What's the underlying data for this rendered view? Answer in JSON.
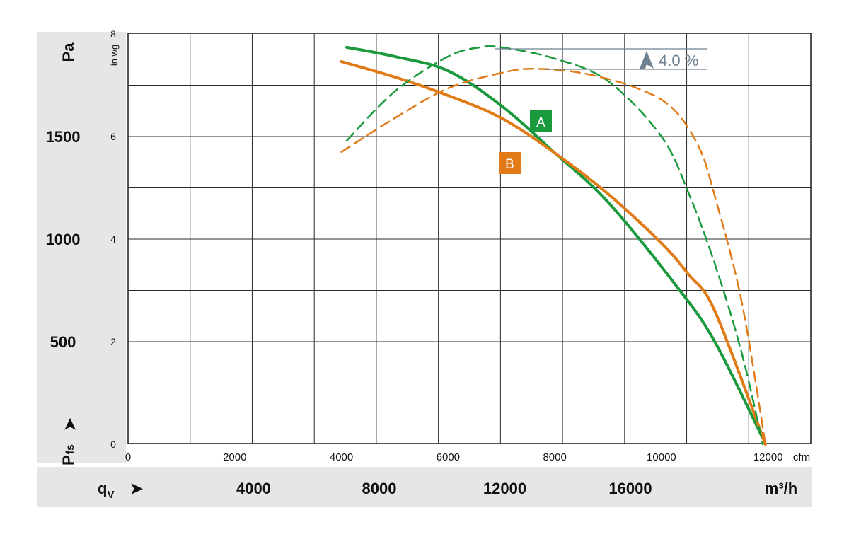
{
  "chart_data": {
    "type": "line",
    "left_axis": {
      "unit": "Pa",
      "ticks": [
        500,
        1000,
        1500
      ],
      "ylim": [
        0,
        2000
      ],
      "arrow_label": "➤",
      "label_main": "P",
      "label_sub": "fs"
    },
    "right_axis": {
      "unit": "in wg",
      "ticks": [
        0,
        2,
        4,
        6,
        8
      ],
      "ylim": [
        0,
        8
      ]
    },
    "x_axis_top": {
      "unit": "cfm",
      "ticks": [
        0,
        2000,
        4000,
        6000,
        8000,
        10000,
        12000
      ],
      "xlim": [
        0,
        12800
      ]
    },
    "x_axis_bottom": {
      "unit": "m³/h",
      "ticks": [
        4000,
        8000,
        12000,
        16000
      ],
      "label_main": "q",
      "label_sub": "V",
      "arrow_label": "➤"
    },
    "grid": true,
    "series": [
      {
        "name": "A",
        "style": "solid",
        "color": "#1a9a3c",
        "x": [
          4100,
          5000,
          6000,
          7000,
          8000,
          9000,
          10300,
          11000,
          11900
        ],
        "y": [
          1935,
          1890,
          1820,
          1650,
          1420,
          1180,
          765,
          500,
          30
        ]
      },
      {
        "name": "B",
        "style": "solid",
        "color": "#e07b18",
        "x": [
          4000,
          5000,
          6000,
          7000,
          8000,
          9000,
          10000,
          10500,
          11000,
          11950
        ],
        "y": [
          1865,
          1790,
          1700,
          1590,
          1420,
          1220,
          980,
          830,
          650,
          0
        ]
      },
      {
        "name": "A",
        "style": "dashed",
        "color": "#1a9a3c",
        "x": [
          4100,
          5000,
          6000,
          6600,
          7000,
          8000,
          9000,
          10000,
          10500,
          11000,
          11500,
          11900
        ],
        "y": [
          1480,
          1720,
          1890,
          1935,
          1935,
          1880,
          1770,
          1500,
          1230,
          880,
          450,
          0
        ]
      },
      {
        "name": "B",
        "style": "dashed",
        "color": "#e07b18",
        "x": [
          4000,
          5000,
          6000,
          7000,
          7600,
          8500,
          9500,
          10200,
          10700,
          11000,
          11500,
          11950
        ],
        "y": [
          1425,
          1590,
          1735,
          1810,
          1830,
          1810,
          1740,
          1640,
          1450,
          1210,
          700,
          0
        ]
      }
    ],
    "annotations": [
      {
        "text": "4.0 %",
        "label": "efficiency-delta",
        "color": "#6f8191"
      },
      {
        "text": "A",
        "label": "series-a-tag",
        "color": "#1a9a3c"
      },
      {
        "text": "B",
        "label": "series-b-tag",
        "color": "#e07b18"
      }
    ]
  }
}
